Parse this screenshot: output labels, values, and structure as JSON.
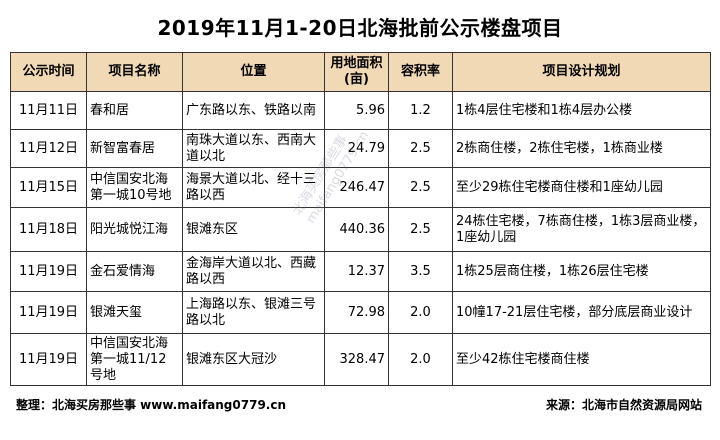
{
  "title": "2019年11月1-20日北海批前公示楼盘项目",
  "table": {
    "headers": [
      "公示时间",
      "项目名称",
      "位置",
      "用地面积(亩)",
      "容积率",
      "项目设计规划"
    ],
    "rows": [
      {
        "date": "11月11日",
        "name": "春和居",
        "location": "广东路以东、铁路以南",
        "area": "5.96",
        "far": "1.2",
        "plan": "1栋4层住宅楼和1栋4层办公楼"
      },
      {
        "date": "11月12日",
        "name": "新智富春居",
        "location": "南珠大道以东、西南大道以北",
        "area": "24.79",
        "far": "2.5",
        "plan": "2栋商住楼，2栋住宅楼，1栋商业楼"
      },
      {
        "date": "11月15日",
        "name": "中信国安北海第一城10号地",
        "location": "海景大道以北、经十三路以西",
        "area": "246.47",
        "far": "2.5",
        "plan": "至少29栋住宅楼商住楼和1座幼儿园"
      },
      {
        "date": "11月18日",
        "name": "阳光城悦江海",
        "location": "银滩东区",
        "area": "440.36",
        "far": "2.5",
        "plan": "24栋住宅楼，7栋商住楼，1栋3层商业楼，1座幼儿园"
      },
      {
        "date": "11月19日",
        "name": "金石爱情海",
        "location": "金海岸大道以北、西藏路以西",
        "area": "12.37",
        "far": "3.5",
        "plan": "1栋25层商住楼，1栋26层住宅楼"
      },
      {
        "date": "11月19日",
        "name": "银滩天玺",
        "location": "上海路以东、银滩三号路以北",
        "area": "72.98",
        "far": "2.0",
        "plan": "10幢17-21层住宅楼，部分底层商业设计"
      },
      {
        "date": "11月19日",
        "name": "中信国安北海第一城11/12号地",
        "location": "银滩东区大冠沙",
        "area": "328.47",
        "far": "2.0",
        "plan": "至少42栋住宅楼商住楼"
      }
    ]
  },
  "watermark": {
    "line1": "北海买房那些事",
    "line2": "maifang0779.cn"
  },
  "footer": {
    "left": "整理：北海买房那些事 www.maifang0779.cn",
    "right": "来源：北海市自然资源局网站"
  }
}
